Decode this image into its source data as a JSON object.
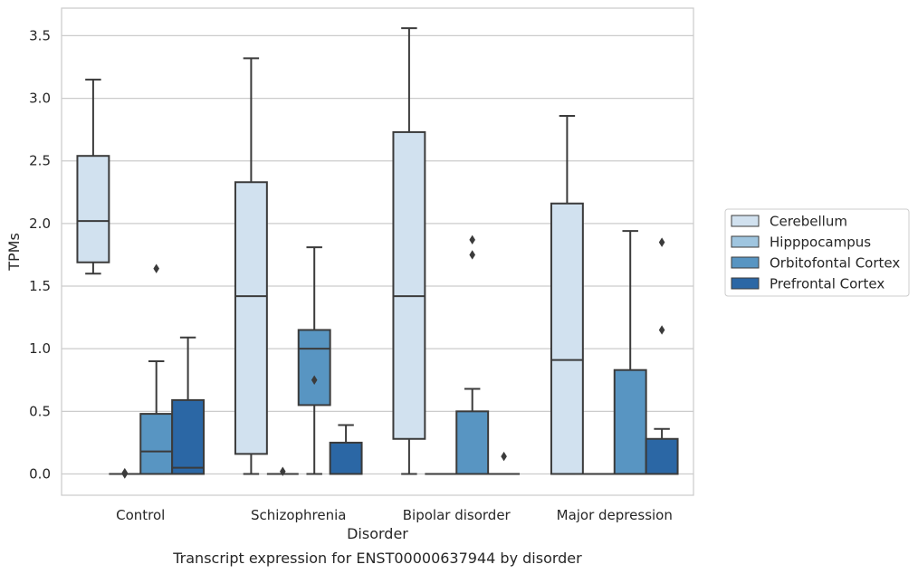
{
  "chart_data": {
    "type": "box",
    "caption": "Transcript expression for ENST00000637944 by disorder",
    "xlabel": "Disorder",
    "ylabel": "TPMs",
    "ylim": [
      -0.17,
      3.72
    ],
    "yticks": [
      "0.0",
      "0.5",
      "1.0",
      "1.5",
      "2.0",
      "2.5",
      "3.0",
      "3.5"
    ],
    "grid": "horizontal",
    "legend_position": "right",
    "categories": [
      "Control",
      "Schizophrenia",
      "Bipolar disorder",
      "Major depression"
    ],
    "series": [
      {
        "name": "Cerebellum",
        "color": "#d1e1ef",
        "boxes": [
          {
            "whisker_low": 1.6,
            "q1": 1.69,
            "median": 2.02,
            "q3": 2.54,
            "whisker_high": 3.15,
            "outliers": []
          },
          {
            "whisker_low": 0.0,
            "q1": 0.16,
            "median": 1.42,
            "q3": 2.33,
            "whisker_high": 3.32,
            "outliers": []
          },
          {
            "whisker_low": 0.0,
            "q1": 0.28,
            "median": 1.42,
            "q3": 2.73,
            "whisker_high": 3.56,
            "outliers": []
          },
          {
            "whisker_low": 0.0,
            "q1": 0.0,
            "median": 0.91,
            "q3": 2.16,
            "whisker_high": 2.86,
            "outliers": []
          }
        ]
      },
      {
        "name": "Hipppocampus",
        "color": "#9fc5df",
        "boxes": [
          {
            "whisker_low": 0.0,
            "q1": 0.0,
            "median": 0.0,
            "q3": 0.0,
            "whisker_high": 0.0,
            "outliers": [
              0.0,
              0.01
            ]
          },
          {
            "whisker_low": 0.0,
            "q1": 0.0,
            "median": 0.0,
            "q3": 0.0,
            "whisker_high": 0.0,
            "outliers": [
              0.02
            ]
          },
          {
            "whisker_low": 0.0,
            "q1": 0.0,
            "median": 0.0,
            "q3": 0.0,
            "whisker_high": 0.0,
            "outliers": []
          },
          {
            "whisker_low": 0.0,
            "q1": 0.0,
            "median": 0.0,
            "q3": 0.0,
            "whisker_high": 0.0,
            "outliers": []
          }
        ]
      },
      {
        "name": "Orbitofontal Cortex",
        "color": "#5895c2",
        "boxes": [
          {
            "whisker_low": 0.0,
            "q1": 0.0,
            "median": 0.18,
            "q3": 0.48,
            "whisker_high": 0.9,
            "outliers": [
              1.64
            ]
          },
          {
            "whisker_low": 0.0,
            "q1": 0.55,
            "median": 1.0,
            "q3": 1.15,
            "whisker_high": 1.81,
            "outliers": [
              0.75
            ]
          },
          {
            "whisker_low": 0.0,
            "q1": 0.0,
            "median": 0.0,
            "q3": 0.5,
            "whisker_high": 0.68,
            "outliers": [
              1.75,
              1.87
            ]
          },
          {
            "whisker_low": 0.0,
            "q1": 0.0,
            "median": 0.0,
            "q3": 0.83,
            "whisker_high": 1.94,
            "outliers": []
          }
        ]
      },
      {
        "name": "Prefrontal Cortex",
        "color": "#2b67a5",
        "boxes": [
          {
            "whisker_low": 0.0,
            "q1": 0.0,
            "median": 0.05,
            "q3": 0.59,
            "whisker_high": 1.09,
            "outliers": []
          },
          {
            "whisker_low": 0.0,
            "q1": 0.0,
            "median": 0.0,
            "q3": 0.25,
            "whisker_high": 0.39,
            "outliers": []
          },
          {
            "whisker_low": 0.0,
            "q1": 0.0,
            "median": 0.0,
            "q3": 0.0,
            "whisker_high": 0.0,
            "outliers": [
              0.14
            ]
          },
          {
            "whisker_low": 0.0,
            "q1": 0.0,
            "median": 0.0,
            "q3": 0.28,
            "whisker_high": 0.36,
            "outliers": [
              1.15,
              1.85
            ]
          }
        ]
      }
    ]
  }
}
